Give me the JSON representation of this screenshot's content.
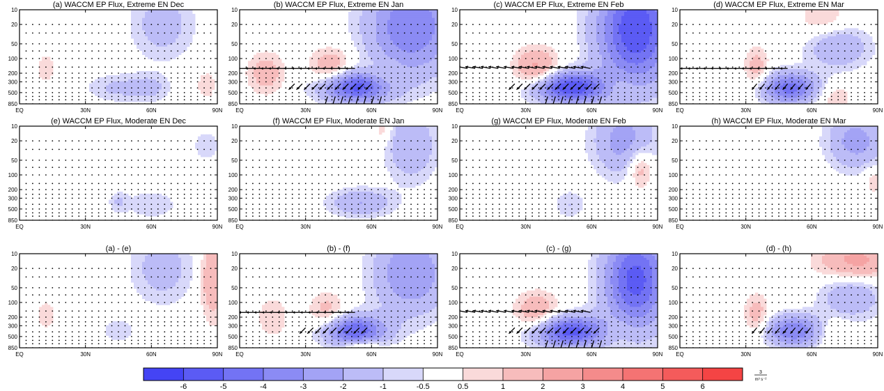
{
  "chart_data": {
    "type": "heatmap",
    "panels": [
      {
        "title": "(a) WACCM EP Flux, Extreme EN Dec",
        "blobs": [
          {
            "lat": 65,
            "p": 20,
            "w": 10,
            "h": 0.5,
            "v": -1.5
          },
          {
            "lat": 45,
            "p": 400,
            "w": 10,
            "h": 0.2,
            "v": -1.2
          },
          {
            "lat": 60,
            "p": 400,
            "w": 6,
            "h": 0.2,
            "v": -1.0
          },
          {
            "lat": 12,
            "p": 160,
            "w": 3,
            "h": 0.2,
            "v": 1.0
          },
          {
            "lat": 85,
            "p": 350,
            "w": 3,
            "h": 0.2,
            "v": 1.0
          }
        ],
        "arrows": []
      },
      {
        "title": "(b) WACCM EP Flux, Extreme EN Jan",
        "blobs": [
          {
            "lat": 78,
            "p": 22,
            "w": 14,
            "h": 0.7,
            "v": -4.0
          },
          {
            "lat": 52,
            "p": 380,
            "w": 11,
            "h": 0.22,
            "v": -5.5
          },
          {
            "lat": 42,
            "p": 170,
            "w": 7,
            "h": 0.3,
            "v": 2.0
          },
          {
            "lat": 12,
            "p": 200,
            "w": 6,
            "h": 0.3,
            "v": 1.5
          },
          {
            "lat": 65,
            "p": 220,
            "w": 6,
            "h": 0.2,
            "v": 1.0
          }
        ],
        "arrows": [
          {
            "lat_start": 0,
            "lat_end": 55,
            "p": 160,
            "u": -1.0,
            "v": 0
          },
          {
            "lat_start": 25,
            "lat_end": 60,
            "p": 330,
            "u": -0.6,
            "v": -0.6
          },
          {
            "lat_start": 40,
            "lat_end": 65,
            "p": 600,
            "u": -0.3,
            "v": -1.0
          }
        ]
      },
      {
        "title": "(c) WACCM EP Flux, Extreme EN Feb",
        "blobs": [
          {
            "lat": 80,
            "p": 25,
            "w": 12,
            "h": 0.8,
            "v": -6.0
          },
          {
            "lat": 50,
            "p": 390,
            "w": 12,
            "h": 0.22,
            "v": -6.0
          },
          {
            "lat": 35,
            "p": 170,
            "w": 7,
            "h": 0.3,
            "v": 2.5
          },
          {
            "lat": 72,
            "p": 340,
            "w": 6,
            "h": 0.2,
            "v": 1.0
          }
        ],
        "arrows": [
          {
            "lat_start": 0,
            "lat_end": 60,
            "p": 160,
            "u": -1.0,
            "v": 0.2
          },
          {
            "lat_start": 25,
            "lat_end": 65,
            "p": 330,
            "u": -0.6,
            "v": -0.6
          },
          {
            "lat_start": 40,
            "lat_end": 65,
            "p": 600,
            "u": -0.3,
            "v": -1.0
          }
        ]
      },
      {
        "title": "(d) WACCM EP Flux, Extreme EN Mar",
        "blobs": [
          {
            "lat": 72,
            "p": 60,
            "w": 10,
            "h": 0.3,
            "v": -2.0
          },
          {
            "lat": 50,
            "p": 400,
            "w": 9,
            "h": 0.22,
            "v": -4.5
          },
          {
            "lat": 35,
            "p": 160,
            "w": 4,
            "h": 0.3,
            "v": 1.5
          },
          {
            "lat": 65,
            "p": 15,
            "w": 8,
            "h": 0.3,
            "v": 1.0
          },
          {
            "lat": 70,
            "p": 600,
            "w": 6,
            "h": 0.2,
            "v": 1.0
          }
        ],
        "arrows": [
          {
            "lat_start": 0,
            "lat_end": 50,
            "p": 160,
            "u": -0.8,
            "v": 0
          },
          {
            "lat_start": 35,
            "lat_end": 60,
            "p": 330,
            "u": -0.5,
            "v": -0.6
          }
        ]
      },
      {
        "title": "(e) WACCM EP Flux, Moderate EN Dec",
        "blobs": [
          {
            "lat": 85,
            "p": 25,
            "w": 4,
            "h": 0.2,
            "v": -1.0
          },
          {
            "lat": 60,
            "p": 400,
            "w": 8,
            "h": 0.2,
            "v": -1.0
          },
          {
            "lat": 45,
            "p": 360,
            "w": 3,
            "h": 0.15,
            "v": -1.0
          }
        ],
        "arrows": []
      },
      {
        "title": "(f) WACCM EP Flux, Moderate EN Jan",
        "blobs": [
          {
            "lat": 78,
            "p": 25,
            "w": 8,
            "h": 0.5,
            "v": -2.0
          },
          {
            "lat": 55,
            "p": 370,
            "w": 10,
            "h": 0.2,
            "v": -2.0
          },
          {
            "lat": 65,
            "p": 12,
            "w": 3,
            "h": 0.2,
            "v": 1.0
          }
        ],
        "arrows": []
      },
      {
        "title": "(g) WACCM EP Flux, Moderate EN Feb",
        "blobs": [
          {
            "lat": 75,
            "p": 20,
            "w": 10,
            "h": 0.5,
            "v": -2.5
          },
          {
            "lat": 50,
            "p": 400,
            "w": 5,
            "h": 0.2,
            "v": -1.0
          },
          {
            "lat": 82,
            "p": 70,
            "w": 4,
            "h": 0.3,
            "v": 2.0
          }
        ],
        "arrows": []
      },
      {
        "title": "(h) WACCM EP Flux, Moderate EN Mar",
        "blobs": [
          {
            "lat": 80,
            "p": 20,
            "w": 9,
            "h": 0.4,
            "v": -2.5
          },
          {
            "lat": 88,
            "p": 130,
            "w": 3,
            "h": 0.2,
            "v": 1.0
          }
        ],
        "arrows": []
      },
      {
        "title": "(a) - (e)",
        "blobs": [
          {
            "lat": 65,
            "p": 20,
            "w": 10,
            "h": 0.5,
            "v": -1.5
          },
          {
            "lat": 88,
            "p": 30,
            "w": 4,
            "h": 0.6,
            "v": 2.0
          },
          {
            "lat": 12,
            "p": 180,
            "w": 3,
            "h": 0.2,
            "v": 1.0
          },
          {
            "lat": 45,
            "p": 380,
            "w": 6,
            "h": 0.2,
            "v": -0.8
          }
        ],
        "arrows": []
      },
      {
        "title": "(b) - (f)",
        "blobs": [
          {
            "lat": 78,
            "p": 25,
            "w": 12,
            "h": 0.6,
            "v": -3.0
          },
          {
            "lat": 52,
            "p": 380,
            "w": 10,
            "h": 0.22,
            "v": -5.0
          },
          {
            "lat": 40,
            "p": 170,
            "w": 6,
            "h": 0.3,
            "v": 1.5
          },
          {
            "lat": 15,
            "p": 200,
            "w": 5,
            "h": 0.3,
            "v": 1.0
          },
          {
            "lat": 55,
            "p": 800,
            "w": 6,
            "h": 0.1,
            "v": 2.0
          }
        ],
        "arrows": [
          {
            "lat_start": 0,
            "lat_end": 55,
            "p": 160,
            "u": -0.9,
            "v": 0
          },
          {
            "lat_start": 30,
            "lat_end": 60,
            "p": 330,
            "u": -0.6,
            "v": -0.6
          }
        ]
      },
      {
        "title": "(c) - (g)",
        "blobs": [
          {
            "lat": 80,
            "p": 35,
            "w": 10,
            "h": 0.7,
            "v": -5.5
          },
          {
            "lat": 50,
            "p": 390,
            "w": 12,
            "h": 0.22,
            "v": -5.5
          },
          {
            "lat": 35,
            "p": 170,
            "w": 7,
            "h": 0.3,
            "v": 2.0
          },
          {
            "lat": 72,
            "p": 360,
            "w": 6,
            "h": 0.2,
            "v": 1.0
          }
        ],
        "arrows": [
          {
            "lat_start": 0,
            "lat_end": 60,
            "p": 160,
            "u": -1.0,
            "v": 0.2
          },
          {
            "lat_start": 25,
            "lat_end": 65,
            "p": 330,
            "u": -0.6,
            "v": -0.6
          },
          {
            "lat_start": 40,
            "lat_end": 65,
            "p": 600,
            "u": -0.3,
            "v": -1.0
          }
        ]
      },
      {
        "title": "(d) - (h)",
        "blobs": [
          {
            "lat": 80,
            "p": 15,
            "w": 12,
            "h": 0.3,
            "v": 2.5
          },
          {
            "lat": 78,
            "p": 70,
            "w": 10,
            "h": 0.35,
            "v": -2.0
          },
          {
            "lat": 52,
            "p": 380,
            "w": 9,
            "h": 0.22,
            "v": -4.0
          },
          {
            "lat": 35,
            "p": 180,
            "w": 4,
            "h": 0.3,
            "v": 1.5
          },
          {
            "lat": 70,
            "p": 400,
            "w": 6,
            "h": 0.2,
            "v": 1.0
          }
        ],
        "arrows": [
          {
            "lat_start": 35,
            "lat_end": 60,
            "p": 330,
            "u": -0.5,
            "v": -0.6
          }
        ]
      }
    ],
    "x_ticks": [
      "EQ",
      "30N",
      "60N",
      "90N"
    ],
    "x_tick_values": [
      0,
      30,
      60,
      90
    ],
    "y_ticks": [
      "10",
      "20",
      "50",
      "100",
      "200",
      "300",
      "500",
      "850"
    ],
    "y_tick_values": [
      10,
      20,
      50,
      100,
      200,
      300,
      500,
      850
    ],
    "y_scale": "log",
    "xlim": [
      0,
      90
    ],
    "ylim": [
      850,
      10
    ],
    "colorbar": {
      "labels": [
        "-6",
        "-5",
        "-4",
        "-3",
        "-2",
        "-1",
        "-0.5",
        "0.5",
        "1",
        "2",
        "3",
        "4",
        "5",
        "6"
      ],
      "levels": [
        -6,
        -5,
        -4,
        -3,
        -2,
        -1,
        -0.5,
        0.5,
        1,
        2,
        3,
        4,
        5,
        6
      ],
      "colors": [
        "#4444f4",
        "#5b5bf4",
        "#7373f4",
        "#8b8bf4",
        "#a3a3f5",
        "#bcbcf7",
        "#d8d8fa",
        "#ffffff",
        "#fadada",
        "#f7bcbc",
        "#f5a3a3",
        "#f48b8b",
        "#f47373",
        "#f45b5b",
        "#f44444"
      ],
      "unit_numerator": "3",
      "unit_denominator": "m³ s⁻²"
    }
  }
}
